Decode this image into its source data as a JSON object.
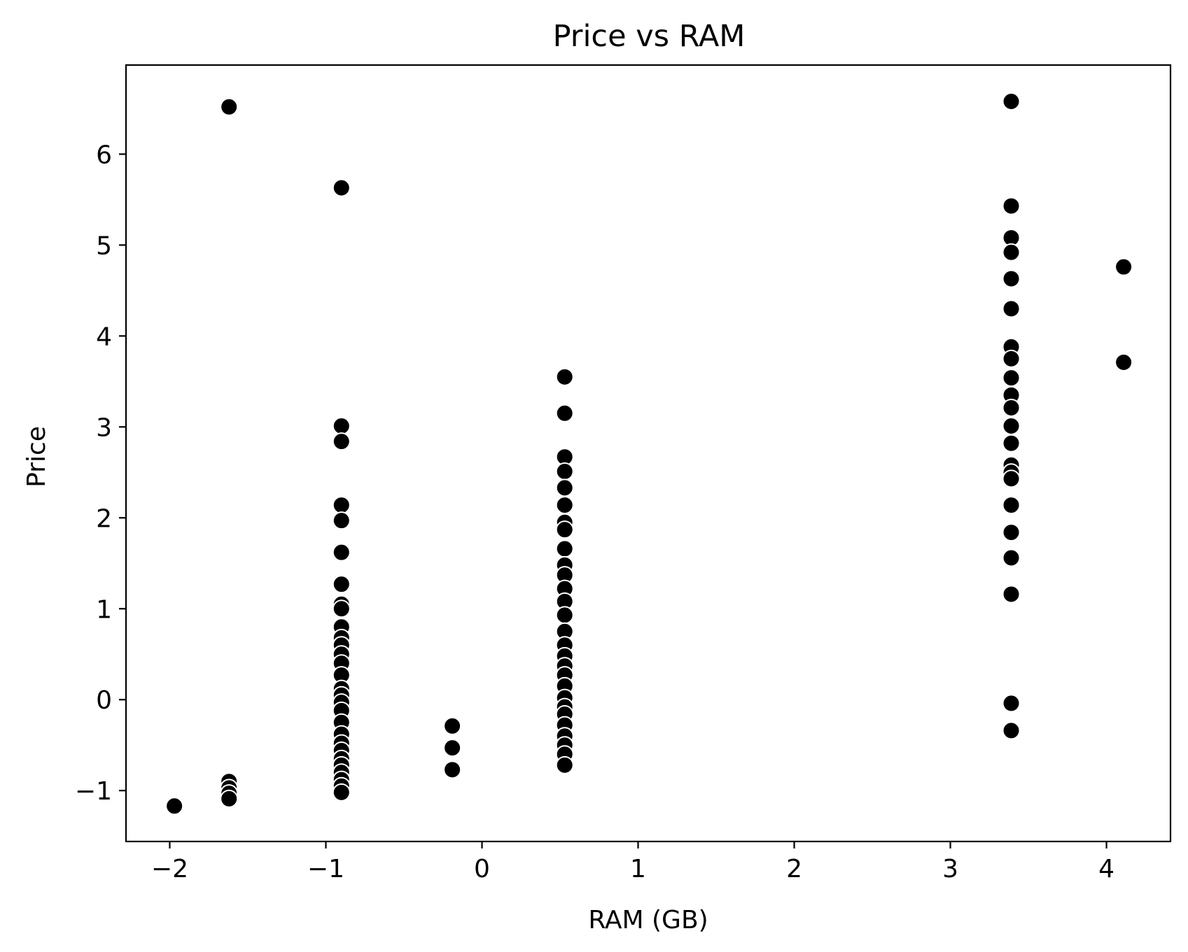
{
  "chart_data": {
    "type": "scatter",
    "title": "Price vs RAM",
    "xlabel": "RAM (GB)",
    "ylabel": "Price",
    "xlim": [
      -2.28,
      4.41
    ],
    "ylim": [
      -1.56,
      6.98
    ],
    "xticks": [
      -2,
      -1,
      0,
      1,
      2,
      3,
      4
    ],
    "yticks": [
      -1,
      0,
      1,
      2,
      3,
      4,
      5,
      6
    ],
    "xtick_labels": [
      "−2",
      "−1",
      "0",
      "1",
      "2",
      "3",
      "4"
    ],
    "ytick_labels": [
      "−1",
      "0",
      "1",
      "2",
      "3",
      "4",
      "5",
      "6"
    ],
    "grid": false,
    "legend": null,
    "marker_color": "#000000",
    "marker_edge_color": "#ffffff",
    "series": [
      {
        "points": [
          {
            "x": -1.97,
            "y": -1.17
          },
          {
            "x": -1.62,
            "y": 6.52
          },
          {
            "x": -1.62,
            "y": -0.9
          },
          {
            "x": -1.62,
            "y": -0.97
          },
          {
            "x": -1.62,
            "y": -1.03
          },
          {
            "x": -1.62,
            "y": -1.09
          },
          {
            "x": -0.9,
            "y": 5.63
          },
          {
            "x": -0.9,
            "y": 3.01
          },
          {
            "x": -0.9,
            "y": 2.84
          },
          {
            "x": -0.9,
            "y": 2.14
          },
          {
            "x": -0.9,
            "y": 1.97
          },
          {
            "x": -0.9,
            "y": 1.62
          },
          {
            "x": -0.9,
            "y": 1.27
          },
          {
            "x": -0.9,
            "y": 1.05
          },
          {
            "x": -0.9,
            "y": 1.0
          },
          {
            "x": -0.9,
            "y": 0.8
          },
          {
            "x": -0.9,
            "y": 0.68
          },
          {
            "x": -0.9,
            "y": 0.6
          },
          {
            "x": -0.9,
            "y": 0.5
          },
          {
            "x": -0.9,
            "y": 0.4
          },
          {
            "x": -0.9,
            "y": 0.27
          },
          {
            "x": -0.9,
            "y": 0.12
          },
          {
            "x": -0.9,
            "y": 0.05
          },
          {
            "x": -0.9,
            "y": -0.03
          },
          {
            "x": -0.9,
            "y": -0.12
          },
          {
            "x": -0.9,
            "y": -0.25
          },
          {
            "x": -0.9,
            "y": -0.38
          },
          {
            "x": -0.9,
            "y": -0.48
          },
          {
            "x": -0.9,
            "y": -0.56
          },
          {
            "x": -0.9,
            "y": -0.65
          },
          {
            "x": -0.9,
            "y": -0.72
          },
          {
            "x": -0.9,
            "y": -0.8
          },
          {
            "x": -0.9,
            "y": -0.88
          },
          {
            "x": -0.9,
            "y": -0.95
          },
          {
            "x": -0.9,
            "y": -1.02
          },
          {
            "x": -0.19,
            "y": -0.29
          },
          {
            "x": -0.19,
            "y": -0.53
          },
          {
            "x": -0.19,
            "y": -0.77
          },
          {
            "x": 0.53,
            "y": 3.55
          },
          {
            "x": 0.53,
            "y": 3.15
          },
          {
            "x": 0.53,
            "y": 2.67
          },
          {
            "x": 0.53,
            "y": 2.51
          },
          {
            "x": 0.53,
            "y": 2.33
          },
          {
            "x": 0.53,
            "y": 2.14
          },
          {
            "x": 0.53,
            "y": 1.95
          },
          {
            "x": 0.53,
            "y": 1.87
          },
          {
            "x": 0.53,
            "y": 1.66
          },
          {
            "x": 0.53,
            "y": 1.48
          },
          {
            "x": 0.53,
            "y": 1.37
          },
          {
            "x": 0.53,
            "y": 1.22
          },
          {
            "x": 0.53,
            "y": 1.08
          },
          {
            "x": 0.53,
            "y": 0.93
          },
          {
            "x": 0.53,
            "y": 0.75
          },
          {
            "x": 0.53,
            "y": 0.6
          },
          {
            "x": 0.53,
            "y": 0.48
          },
          {
            "x": 0.53,
            "y": 0.37
          },
          {
            "x": 0.53,
            "y": 0.27
          },
          {
            "x": 0.53,
            "y": 0.15
          },
          {
            "x": 0.53,
            "y": 0.02
          },
          {
            "x": 0.53,
            "y": -0.08
          },
          {
            "x": 0.53,
            "y": -0.16
          },
          {
            "x": 0.53,
            "y": -0.28
          },
          {
            "x": 0.53,
            "y": -0.4
          },
          {
            "x": 0.53,
            "y": -0.5
          },
          {
            "x": 0.53,
            "y": -0.6
          },
          {
            "x": 0.53,
            "y": -0.72
          },
          {
            "x": 3.39,
            "y": 6.58
          },
          {
            "x": 3.39,
            "y": 5.43
          },
          {
            "x": 3.39,
            "y": 5.08
          },
          {
            "x": 3.39,
            "y": 4.92
          },
          {
            "x": 3.39,
            "y": 4.63
          },
          {
            "x": 3.39,
            "y": 4.3
          },
          {
            "x": 3.39,
            "y": 3.88
          },
          {
            "x": 3.39,
            "y": 3.75
          },
          {
            "x": 3.39,
            "y": 3.54
          },
          {
            "x": 3.39,
            "y": 3.35
          },
          {
            "x": 3.39,
            "y": 3.21
          },
          {
            "x": 3.39,
            "y": 3.01
          },
          {
            "x": 3.39,
            "y": 2.82
          },
          {
            "x": 3.39,
            "y": 2.58
          },
          {
            "x": 3.39,
            "y": 2.5
          },
          {
            "x": 3.39,
            "y": 2.43
          },
          {
            "x": 3.39,
            "y": 2.14
          },
          {
            "x": 3.39,
            "y": 1.84
          },
          {
            "x": 3.39,
            "y": 1.56
          },
          {
            "x": 3.39,
            "y": 1.16
          },
          {
            "x": 3.39,
            "y": -0.04
          },
          {
            "x": 3.39,
            "y": -0.34
          },
          {
            "x": 4.11,
            "y": 4.76
          },
          {
            "x": 4.11,
            "y": 3.71
          }
        ]
      }
    ]
  }
}
